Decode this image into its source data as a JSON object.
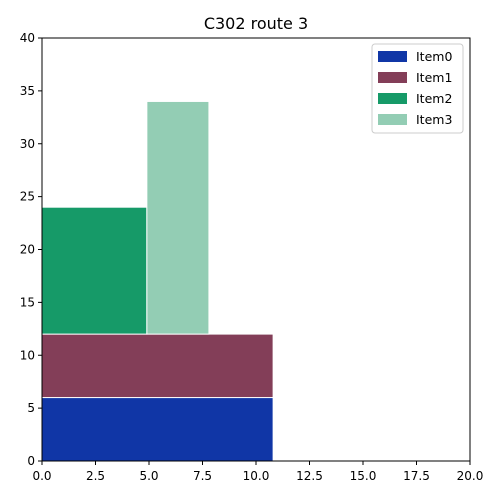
{
  "chart_data": {
    "type": "bar",
    "title": "C302 route 3",
    "xlabel": "",
    "ylabel": "",
    "xlim": [
      0,
      20
    ],
    "ylim": [
      0,
      40
    ],
    "x_ticks": [
      "0.0",
      "2.5",
      "5.0",
      "7.5",
      "10.0",
      "12.5",
      "15.0",
      "17.5",
      "20.0"
    ],
    "y_ticks": [
      "0",
      "5",
      "10",
      "15",
      "20",
      "25",
      "30",
      "35",
      "40"
    ],
    "grid": false,
    "legend_position": "top-right",
    "series": [
      {
        "name": "Item0",
        "color": "#1036a6",
        "x0": 0,
        "x1": 10.8,
        "y0": 0,
        "y1": 6
      },
      {
        "name": "Item1",
        "color": "#833e58",
        "x0": 0,
        "x1": 10.8,
        "y0": 6,
        "y1": 12
      },
      {
        "name": "Item2",
        "color": "#169a68",
        "x0": 0,
        "x1": 4.9,
        "y0": 12,
        "y1": 24
      },
      {
        "name": "Item3",
        "color": "#93cdb4",
        "x0": 4.9,
        "x1": 7.8,
        "y0": 12,
        "y1": 34
      }
    ]
  }
}
